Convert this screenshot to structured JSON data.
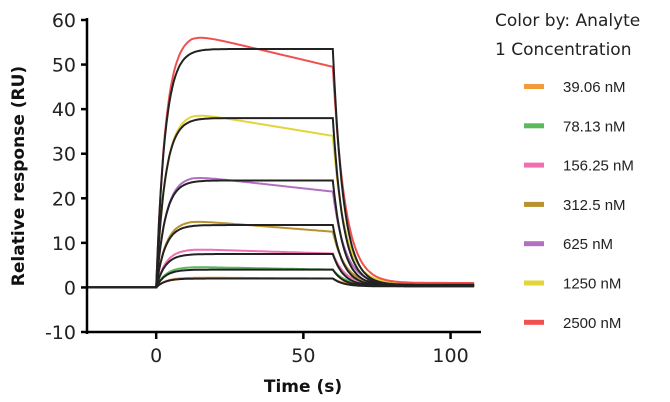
{
  "chart_data": {
    "type": "line",
    "title": "",
    "xlabel": "Time (s)",
    "ylabel": "Relative response (RU)",
    "xlim": [
      -23.5,
      110
    ],
    "ylim": [
      -10,
      60
    ],
    "xticks": [
      0,
      50,
      100
    ],
    "xtick_labels": [
      "0",
      "50",
      "100"
    ],
    "yticks": [
      -10,
      0,
      10,
      20,
      30,
      40,
      50,
      60
    ],
    "ytick_labels": [
      "-10",
      "0",
      "10",
      "20",
      "30",
      "40",
      "50",
      "60"
    ],
    "grid": false,
    "legend": {
      "title_line1": "Color by: Analyte",
      "title_line2": "1 Concentration",
      "placement": "right"
    },
    "injection_start": 0,
    "injection_end": 60,
    "series": [
      {
        "name": "39.06 nM",
        "color": "#f29b38",
        "fit_plateau": 2.0,
        "peak": 2.2,
        "end_value": 2.0,
        "residual": 0.4
      },
      {
        "name": "78.13 nM",
        "color": "#5cb85c",
        "fit_plateau": 4.0,
        "peak": 4.6,
        "end_value": 4.0,
        "residual": 0.5
      },
      {
        "name": "156.25 nM",
        "color": "#f06fb0",
        "fit_plateau": 7.5,
        "peak": 8.6,
        "end_value": 7.6,
        "residual": 0.6
      },
      {
        "name": "312.5 nM",
        "color": "#b8922e",
        "fit_plateau": 14.0,
        "peak": 15.0,
        "end_value": 12.5,
        "residual": 0.7
      },
      {
        "name": "625 nM",
        "color": "#b36fc0",
        "fit_plateau": 24.0,
        "peak": 25.0,
        "end_value": 21.5,
        "residual": 0.8
      },
      {
        "name": "1250 nM",
        "color": "#e3d43a",
        "fit_plateau": 38.0,
        "peak": 39.2,
        "end_value": 34.0,
        "residual": 0.9
      },
      {
        "name": "2500 nM",
        "color": "#f05050",
        "fit_plateau": 53.5,
        "peak": 57.0,
        "end_value": 49.5,
        "residual": 1.0
      }
    ],
    "fit_color": "#222222"
  }
}
